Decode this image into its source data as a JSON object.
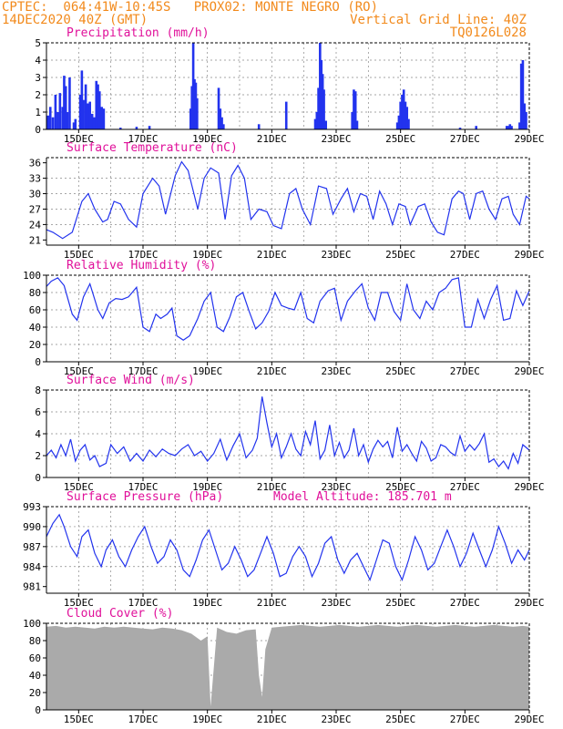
{
  "header": {
    "line1_left": "CPTEC:  064:41W-10:45S   PROX02: MONTE NEGRO (RO)",
    "line2_left": "14DEC2020 40Z (GMT)",
    "line2_right": "Vertical Grid Line: 40Z",
    "line3_right": "TQ0126L028"
  },
  "colors": {
    "header": "#f28a1c",
    "title": "#e0109a",
    "series": "#2233ee",
    "cloud": "#aaaaaa"
  },
  "x_ticks": [
    "15DEC",
    "17DEC",
    "19DEC",
    "21DEC",
    "23DEC",
    "25DEC",
    "27DEC",
    "29DEC"
  ],
  "chart_data": [
    {
      "type": "bar",
      "id": "precip",
      "title": "Precipitation (mm/h)",
      "ylim": [
        0,
        5
      ],
      "yticks": [
        "0",
        "1",
        "2",
        "3",
        "4",
        "5"
      ],
      "x_range": [
        14.0,
        29.0
      ],
      "values": [
        [
          14.05,
          0.8
        ],
        [
          14.12,
          1.3
        ],
        [
          14.2,
          0.7
        ],
        [
          14.28,
          2.0
        ],
        [
          14.35,
          1.0
        ],
        [
          14.42,
          2.1
        ],
        [
          14.5,
          1.3
        ],
        [
          14.55,
          3.1
        ],
        [
          14.6,
          2.5
        ],
        [
          14.65,
          1.0
        ],
        [
          14.72,
          3.0
        ],
        [
          14.85,
          0.4
        ],
        [
          14.9,
          0.6
        ],
        [
          15.05,
          2.0
        ],
        [
          15.1,
          3.4
        ],
        [
          15.15,
          1.7
        ],
        [
          15.22,
          2.6
        ],
        [
          15.28,
          1.5
        ],
        [
          15.35,
          1.6
        ],
        [
          15.42,
          0.9
        ],
        [
          15.48,
          0.7
        ],
        [
          15.55,
          2.8
        ],
        [
          15.6,
          2.6
        ],
        [
          15.65,
          2.2
        ],
        [
          15.72,
          1.3
        ],
        [
          15.78,
          1.2
        ],
        [
          16.3,
          0.1
        ],
        [
          16.8,
          0.15
        ],
        [
          17.2,
          0.2
        ],
        [
          18.48,
          1.2
        ],
        [
          18.52,
          2.5
        ],
        [
          18.56,
          5.0
        ],
        [
          18.6,
          2.9
        ],
        [
          18.64,
          2.7
        ],
        [
          18.68,
          1.8
        ],
        [
          19.35,
          2.4
        ],
        [
          19.4,
          1.2
        ],
        [
          19.45,
          0.7
        ],
        [
          19.5,
          0.3
        ],
        [
          20.6,
          0.3
        ],
        [
          21.45,
          1.6
        ],
        [
          22.35,
          0.6
        ],
        [
          22.4,
          1.0
        ],
        [
          22.45,
          2.4
        ],
        [
          22.5,
          5.0
        ],
        [
          22.54,
          4.0
        ],
        [
          22.58,
          3.2
        ],
        [
          22.62,
          2.3
        ],
        [
          22.68,
          0.5
        ],
        [
          23.5,
          1.0
        ],
        [
          23.55,
          2.3
        ],
        [
          23.6,
          2.2
        ],
        [
          23.65,
          0.5
        ],
        [
          24.9,
          0.4
        ],
        [
          24.95,
          0.8
        ],
        [
          25.0,
          1.6
        ],
        [
          25.05,
          2.0
        ],
        [
          25.1,
          2.3
        ],
        [
          25.15,
          1.6
        ],
        [
          25.2,
          1.3
        ],
        [
          25.25,
          0.6
        ],
        [
          26.85,
          0.1
        ],
        [
          27.35,
          0.2
        ],
        [
          28.3,
          0.2
        ],
        [
          28.35,
          0.2
        ],
        [
          28.4,
          0.3
        ],
        [
          28.45,
          0.2
        ],
        [
          28.7,
          0.4
        ],
        [
          28.75,
          3.8
        ],
        [
          28.8,
          4.0
        ],
        [
          28.85,
          1.5
        ],
        [
          28.9,
          1.0
        ]
      ]
    },
    {
      "type": "line",
      "id": "temp",
      "title": "Surface Temperature (nC)",
      "ylim": [
        20.0,
        37.0
      ],
      "yticks": [
        "21",
        "24",
        "27",
        "30",
        "33",
        "36"
      ],
      "x_range": [
        14.0,
        29.0
      ],
      "x": [
        14.0,
        14.2,
        14.5,
        14.8,
        15.1,
        15.3,
        15.5,
        15.75,
        15.9,
        16.1,
        16.3,
        16.55,
        16.8,
        17.0,
        17.3,
        17.5,
        17.7,
        18.0,
        18.2,
        18.4,
        18.7,
        18.9,
        19.1,
        19.35,
        19.55,
        19.75,
        19.95,
        20.15,
        20.35,
        20.6,
        20.85,
        21.05,
        21.3,
        21.55,
        21.75,
        21.95,
        22.2,
        22.45,
        22.7,
        22.9,
        23.15,
        23.35,
        23.55,
        23.75,
        23.95,
        24.15,
        24.35,
        24.55,
        24.75,
        24.95,
        25.15,
        25.3,
        25.55,
        25.75,
        25.95,
        26.15,
        26.35,
        26.6,
        26.8,
        26.95,
        27.15,
        27.35,
        27.55,
        27.75,
        27.95,
        28.15,
        28.35,
        28.5,
        28.7,
        28.9,
        29.0
      ],
      "values": [
        23.0,
        22.5,
        21.3,
        22.5,
        28.5,
        30.0,
        27.0,
        24.5,
        25.0,
        28.5,
        28.0,
        25.0,
        23.5,
        30.0,
        33.0,
        31.5,
        26.0,
        33.5,
        36.2,
        34.5,
        27.0,
        33.0,
        35.0,
        34.0,
        25.0,
        33.5,
        35.5,
        33.0,
        25.0,
        27.0,
        26.5,
        23.8,
        23.2,
        30.0,
        31.0,
        27.0,
        24.0,
        31.5,
        31.0,
        26.0,
        29.0,
        31.0,
        26.5,
        30.0,
        29.5,
        25.0,
        30.5,
        28.0,
        24.0,
        28.0,
        27.5,
        24.0,
        27.5,
        28.0,
        24.5,
        22.5,
        22.0,
        29.0,
        30.5,
        30.0,
        25.0,
        30.0,
        30.5,
        27.0,
        25.0,
        29.0,
        29.5,
        26.0,
        24.0,
        29.5,
        29.0
      ]
    },
    {
      "type": "line",
      "id": "rh",
      "title": "Relative Humidity (%)",
      "ylim": [
        0,
        100
      ],
      "yticks": [
        "0",
        "20",
        "40",
        "60",
        "80",
        "100"
      ],
      "x_range": [
        14.0,
        29.0
      ],
      "x": [
        14.0,
        14.15,
        14.35,
        14.55,
        14.8,
        14.95,
        15.15,
        15.35,
        15.6,
        15.75,
        15.95,
        16.15,
        16.35,
        16.55,
        16.8,
        17.0,
        17.2,
        17.4,
        17.55,
        17.75,
        17.9,
        18.05,
        18.25,
        18.45,
        18.7,
        18.9,
        19.1,
        19.3,
        19.5,
        19.7,
        19.9,
        20.1,
        20.3,
        20.5,
        20.7,
        20.9,
        21.1,
        21.3,
        21.5,
        21.7,
        21.9,
        22.1,
        22.3,
        22.5,
        22.75,
        22.95,
        23.15,
        23.35,
        23.6,
        23.8,
        24.0,
        24.2,
        24.4,
        24.6,
        24.8,
        25.0,
        25.2,
        25.4,
        25.6,
        25.8,
        26.0,
        26.2,
        26.4,
        26.6,
        26.8,
        27.0,
        27.2,
        27.4,
        27.6,
        27.8,
        28.0,
        28.2,
        28.4,
        28.6,
        28.8,
        29.0
      ],
      "values": [
        87,
        93,
        97,
        88,
        55,
        48,
        75,
        90,
        60,
        50,
        68,
        73,
        72,
        75,
        86,
        40,
        35,
        55,
        50,
        55,
        62,
        30,
        25,
        30,
        50,
        70,
        80,
        40,
        35,
        52,
        75,
        80,
        58,
        38,
        45,
        58,
        80,
        65,
        62,
        60,
        80,
        50,
        45,
        70,
        82,
        85,
        48,
        70,
        82,
        90,
        62,
        48,
        80,
        80,
        58,
        48,
        90,
        60,
        50,
        70,
        60,
        80,
        85,
        95,
        97,
        40,
        40,
        72,
        50,
        72,
        88,
        48,
        50,
        82,
        65,
        82
      ]
    },
    {
      "type": "line",
      "id": "wind",
      "title": "Surface Wind (m/s)",
      "ylim": [
        0,
        8
      ],
      "yticks": [
        "0",
        "2",
        "4",
        "6",
        "8"
      ],
      "x_range": [
        14.0,
        29.0
      ],
      "x": [
        14.0,
        14.15,
        14.3,
        14.45,
        14.6,
        14.75,
        14.9,
        15.05,
        15.2,
        15.35,
        15.5,
        15.65,
        15.85,
        16.0,
        16.2,
        16.4,
        16.6,
        16.8,
        17.0,
        17.2,
        17.4,
        17.6,
        17.8,
        18.0,
        18.2,
        18.4,
        18.6,
        18.8,
        19.0,
        19.2,
        19.4,
        19.6,
        19.8,
        20.0,
        20.2,
        20.4,
        20.55,
        20.7,
        20.85,
        21.0,
        21.15,
        21.3,
        21.45,
        21.6,
        21.75,
        21.9,
        22.05,
        22.2,
        22.35,
        22.5,
        22.65,
        22.8,
        22.95,
        23.1,
        23.25,
        23.4,
        23.55,
        23.7,
        23.85,
        24.0,
        24.15,
        24.3,
        24.45,
        24.6,
        24.75,
        24.9,
        25.05,
        25.2,
        25.35,
        25.5,
        25.65,
        25.8,
        25.95,
        26.1,
        26.25,
        26.4,
        26.55,
        26.7,
        26.85,
        27.0,
        27.15,
        27.3,
        27.45,
        27.6,
        27.75,
        27.9,
        28.05,
        28.2,
        28.35,
        28.5,
        28.65,
        28.8,
        29.0
      ],
      "values": [
        2.0,
        2.5,
        1.8,
        3.0,
        2.0,
        3.5,
        1.5,
        2.5,
        3.0,
        1.6,
        2.0,
        1.0,
        1.3,
        3.0,
        2.2,
        2.8,
        1.5,
        2.2,
        1.5,
        2.5,
        1.9,
        2.6,
        2.2,
        2.0,
        2.6,
        3.0,
        2.0,
        2.4,
        1.5,
        2.2,
        3.5,
        1.6,
        2.9,
        4.0,
        1.8,
        2.5,
        3.6,
        7.4,
        5.0,
        2.8,
        4.0,
        1.8,
        2.8,
        4.0,
        2.6,
        2.0,
        4.2,
        3.0,
        5.2,
        1.7,
        2.5,
        4.8,
        2.0,
        3.2,
        1.8,
        2.5,
        4.5,
        2.0,
        3.0,
        1.4,
        2.6,
        3.4,
        2.8,
        3.3,
        1.8,
        4.6,
        2.4,
        3.0,
        2.2,
        1.5,
        3.3,
        2.7,
        1.5,
        1.8,
        3.0,
        2.8,
        2.3,
        2.0,
        3.8,
        2.4,
        3.0,
        2.5,
        3.1,
        4.0,
        1.4,
        1.7,
        1.0,
        1.5,
        0.8,
        2.2,
        1.3,
        3.0,
        2.5
      ]
    },
    {
      "type": "line",
      "id": "pres",
      "title": "Surface Pressure (hPa)",
      "subtitle": "Model Altitude: 185.701  m",
      "ylim": [
        980.0,
        993.0
      ],
      "yticks": [
        "981",
        "984",
        "987",
        "990",
        "993"
      ],
      "x_range": [
        14.0,
        29.0
      ],
      "x": [
        14.0,
        14.2,
        14.4,
        14.55,
        14.75,
        14.95,
        15.1,
        15.3,
        15.5,
        15.7,
        15.85,
        16.05,
        16.25,
        16.45,
        16.65,
        16.85,
        17.05,
        17.25,
        17.45,
        17.65,
        17.85,
        18.05,
        18.25,
        18.45,
        18.65,
        18.85,
        19.05,
        19.25,
        19.45,
        19.65,
        19.85,
        20.05,
        20.25,
        20.45,
        20.65,
        20.85,
        21.05,
        21.25,
        21.45,
        21.65,
        21.85,
        22.05,
        22.25,
        22.45,
        22.65,
        22.85,
        23.05,
        23.25,
        23.45,
        23.65,
        23.85,
        24.05,
        24.25,
        24.45,
        24.65,
        24.85,
        25.05,
        25.25,
        25.45,
        25.65,
        25.85,
        26.05,
        26.25,
        26.45,
        26.65,
        26.85,
        27.05,
        27.25,
        27.45,
        27.65,
        27.85,
        28.05,
        28.25,
        28.45,
        28.65,
        28.85,
        29.0
      ],
      "values": [
        988.5,
        990.5,
        991.8,
        990.0,
        987.0,
        985.5,
        988.5,
        989.5,
        986.0,
        984.0,
        986.5,
        988.0,
        985.5,
        984.0,
        986.5,
        988.5,
        990.0,
        987.0,
        984.5,
        985.5,
        988.0,
        986.5,
        983.5,
        982.5,
        985.0,
        988.0,
        989.5,
        986.5,
        983.5,
        984.5,
        987.0,
        985.0,
        982.5,
        983.5,
        986.0,
        988.5,
        986.0,
        982.5,
        983.0,
        985.5,
        987.0,
        985.5,
        982.5,
        984.5,
        987.5,
        988.5,
        985.0,
        983.0,
        985.0,
        986.0,
        984.0,
        982.0,
        985.0,
        988.0,
        987.5,
        984.0,
        982.0,
        985.0,
        988.5,
        986.5,
        983.5,
        984.5,
        987.0,
        989.5,
        987.0,
        984.0,
        986.0,
        989.0,
        986.5,
        984.0,
        986.5,
        990.0,
        987.5,
        984.5,
        986.5,
        985.0,
        986.5
      ]
    },
    {
      "type": "area",
      "id": "cloud",
      "title": "Cloud Cover (%)",
      "ylim": [
        0,
        100
      ],
      "yticks": [
        "0",
        "20",
        "40",
        "60",
        "80",
        "100"
      ],
      "x_range": [
        14.0,
        29.0
      ],
      "x": [
        14.0,
        14.3,
        14.6,
        14.9,
        15.2,
        15.5,
        15.8,
        16.1,
        16.4,
        16.7,
        17.0,
        17.3,
        17.6,
        17.9,
        18.2,
        18.5,
        18.8,
        19.0,
        19.1,
        19.3,
        19.6,
        19.9,
        20.2,
        20.5,
        20.6,
        20.7,
        20.8,
        21.0,
        21.3,
        21.6,
        21.9,
        22.2,
        22.5,
        22.8,
        23.1,
        23.4,
        23.7,
        24.0,
        24.3,
        24.6,
        24.9,
        25.2,
        25.5,
        25.8,
        26.1,
        26.4,
        26.7,
        27.0,
        27.3,
        27.6,
        27.9,
        28.2,
        28.5,
        28.8,
        29.0
      ],
      "values": [
        96,
        97,
        95,
        96,
        95,
        94,
        96,
        95,
        96,
        95,
        94,
        93,
        95,
        94,
        92,
        88,
        80,
        85,
        4,
        95,
        90,
        88,
        92,
        93,
        40,
        15,
        70,
        95,
        96,
        97,
        98,
        97,
        96,
        97,
        98,
        97,
        96,
        97,
        98,
        97,
        96,
        97,
        98,
        97,
        96,
        97,
        98,
        97,
        96,
        97,
        98,
        97,
        96,
        97,
        96
      ]
    }
  ]
}
